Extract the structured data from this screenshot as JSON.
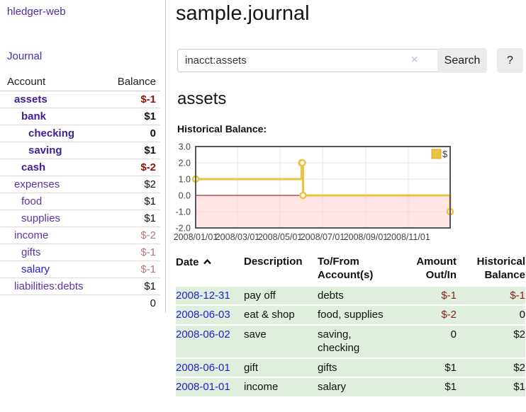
{
  "app_title": "hledger-web",
  "sidebar": {
    "nav_journal": "Journal",
    "table_headers": {
      "account": "Account",
      "balance": "Balance"
    },
    "accounts": [
      {
        "name": "assets",
        "depth": 1,
        "bold": true,
        "balance": "$-1",
        "neg": "strong"
      },
      {
        "name": "bank",
        "depth": 2,
        "bold": true,
        "balance": "$1"
      },
      {
        "name": "checking",
        "depth": 3,
        "bold": true,
        "balance": "0"
      },
      {
        "name": "saving",
        "depth": 3,
        "bold": true,
        "balance": "$1"
      },
      {
        "name": "cash",
        "depth": 2,
        "bold": true,
        "balance": "$-2",
        "neg": "strong"
      },
      {
        "name": "expenses",
        "depth": 1,
        "bold": false,
        "balance": "$2"
      },
      {
        "name": "food",
        "depth": 2,
        "bold": false,
        "balance": "$1"
      },
      {
        "name": "supplies",
        "depth": 2,
        "bold": false,
        "balance": "$1"
      },
      {
        "name": "income",
        "depth": 1,
        "bold": false,
        "balance": "$-2",
        "neg": "soft"
      },
      {
        "name": "gifts",
        "depth": 2,
        "bold": false,
        "balance": "$-1",
        "neg": "soft"
      },
      {
        "name": "salary",
        "depth": 2,
        "bold": false,
        "balance": "$-1",
        "neg": "soft",
        "link_style": "blue"
      },
      {
        "name": "liabilities:debts",
        "depth": 1,
        "bold": false,
        "balance": "$1"
      }
    ],
    "total": "0"
  },
  "main": {
    "title": "sample.journal",
    "search": {
      "value": "inacct:assets",
      "clear_label": "×",
      "search_button": "Search",
      "help_button": "?"
    },
    "heading": "assets",
    "chart_title": "Historical Balance:"
  },
  "chart_data": {
    "type": "line",
    "step": true,
    "title": "Historical Balance:",
    "series": [
      {
        "name": "$",
        "points": [
          [
            "2008-01-01",
            1
          ],
          [
            "2008-06-01",
            2
          ],
          [
            "2008-06-02",
            2
          ],
          [
            "2008-06-03",
            0
          ],
          [
            "2008-12-31",
            -1
          ]
        ]
      }
    ],
    "x_range": [
      "2008-01-01",
      "2008-12-31"
    ],
    "ylim": [
      -2,
      3
    ],
    "x_ticks": [
      "2008/01/01",
      "2008/03/01",
      "2008/05/01",
      "2008/07/01",
      "2008/09/01",
      "2008/11/01"
    ],
    "y_ticks": [
      3.0,
      2.0,
      1.0,
      0.0,
      -1.0,
      -2.0
    ],
    "grid": true,
    "legend": "$",
    "legend_position": "top-right",
    "line_color": "#edc240",
    "marker_fill": "#ffffff",
    "negative_region_color": "#ffcccc",
    "zero_line_color": "#8b0000",
    "border_color": "#545454",
    "grid_color": "#e6e6e6"
  },
  "register": {
    "headers": {
      "date": "Date",
      "description": "Description",
      "account": "To/From Account(s)",
      "amount": "Amount Out/In",
      "balance": "Historical Balance"
    },
    "rows": [
      {
        "date": "2008-12-31",
        "description": "pay off",
        "account": "debts",
        "amount": "$-1",
        "amount_neg": true,
        "balance": "$-1",
        "balance_neg": true
      },
      {
        "date": "2008-06-03",
        "description": "eat & shop",
        "account": "food, supplies",
        "amount": "$-2",
        "amount_neg": true,
        "balance": "0",
        "balance_neg": false
      },
      {
        "date": "2008-06-02",
        "description": "save",
        "account": "saving, checking",
        "amount": "0",
        "amount_neg": false,
        "balance": "$2",
        "balance_neg": false
      },
      {
        "date": "2008-06-01",
        "description": "gift",
        "account": "gifts",
        "amount": "$1",
        "amount_neg": false,
        "balance": "$2",
        "balance_neg": false
      },
      {
        "date": "2008-01-01",
        "description": "income",
        "account": "salary",
        "amount": "$1",
        "amount_neg": false,
        "balance": "$1",
        "balance_neg": false
      }
    ]
  },
  "colors": {
    "link_purple": "#5229a3",
    "account_bold_purple": "#40209a",
    "unvisited_blue": "#2222cc",
    "negative_strong": "#8b1500",
    "negative_soft": "#bb7272",
    "register_row_green": "#dfeedd",
    "register_negative": "#8f1d1d",
    "button_gray": "#ebebeb"
  }
}
